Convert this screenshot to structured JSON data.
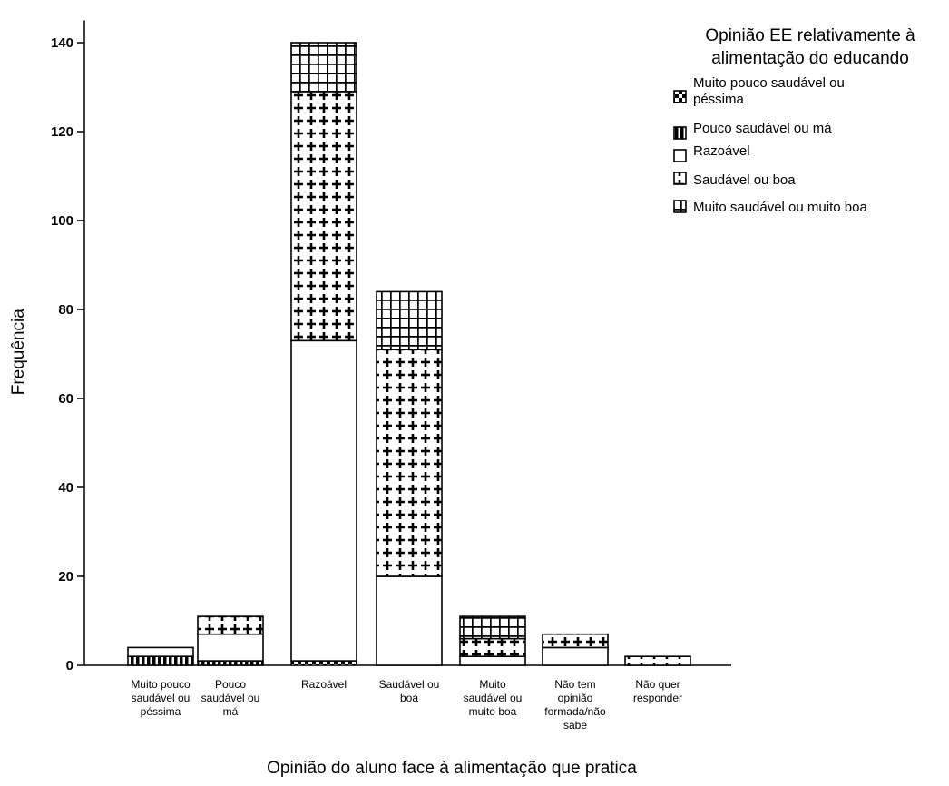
{
  "chart_data": {
    "type": "bar",
    "stacked": true,
    "xlabel": "Opinião do aluno face à alimentação que pratica",
    "ylabel": "Frequência",
    "ylim": [
      0,
      145
    ],
    "yticks": [
      0,
      20,
      40,
      60,
      80,
      100,
      120,
      140
    ],
    "categories": [
      [
        "Muito pouco",
        "saudável ou",
        "péssima"
      ],
      [
        "Pouco",
        "saudável ou",
        "má"
      ],
      [
        "Razoável"
      ],
      [
        "Saudável ou",
        "boa"
      ],
      [
        "Muito",
        "saudável ou",
        "muito boa"
      ],
      [
        "Não tem",
        "opinião",
        "formada/não",
        "sabe"
      ],
      [
        "Não quer",
        "responder"
      ]
    ],
    "legend_title": [
      "Opinião EE relativamente à",
      "alimentação do educando"
    ],
    "legend_position": "top-right",
    "series": [
      {
        "name": "Muito pouco saudável ou péssima",
        "name_lines": [
          "Muito pouco saudável ou",
          "péssima"
        ],
        "pattern": "checker",
        "values": [
          0,
          0,
          0,
          0,
          0,
          0,
          0
        ]
      },
      {
        "name": "Pouco saudável ou má",
        "name_lines": [
          "Pouco saudável ou má"
        ],
        "pattern": "vlines",
        "values": [
          2,
          1,
          0,
          0,
          0,
          0,
          0
        ]
      },
      {
        "name": "Razoável",
        "name_lines": [
          "Razoável"
        ],
        "pattern": "none",
        "values": [
          2,
          6,
          72,
          20,
          2,
          4,
          0
        ]
      },
      {
        "name": "Saudável ou boa",
        "name_lines": [
          "Saudável ou boa"
        ],
        "pattern": "plus",
        "values": [
          0,
          4,
          56,
          51,
          4,
          3,
          2
        ]
      },
      {
        "name": "Muito saudável ou muito boa",
        "name_lines": [
          "Muito saudável ou muito boa"
        ],
        "pattern": "grid",
        "values": [
          0,
          0,
          11,
          13,
          5,
          0,
          0
        ]
      }
    ],
    "base_values": [
      0,
      0,
      1,
      0,
      0,
      0,
      0
    ]
  }
}
